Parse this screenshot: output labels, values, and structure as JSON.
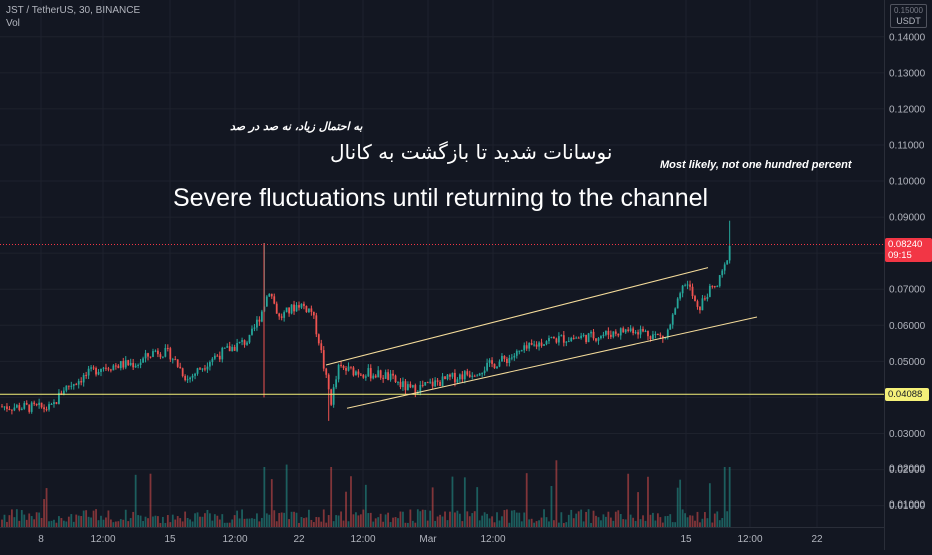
{
  "legend": {
    "symbol_line": "JST / TetherUS, 30, BINANCE",
    "vol_label": "Vol"
  },
  "annotations": {
    "fa_small": "به احتمال زیاد، نه صد در صد",
    "fa_big": "نوسانات شدید تا بازگشت به کانال",
    "en_small": "Most likely, not one hundred percent",
    "en_big": "Severe fluctuations until returning to the channel"
  },
  "price_scale": {
    "currency": "USDT",
    "top_label": "0.15000"
  },
  "last_price": {
    "value": "0.08240",
    "countdown": "09:15",
    "color": "#f23645"
  },
  "horizontal_line": {
    "value": "0.04088",
    "color": "#f5f179"
  },
  "colors": {
    "up": "#26a69a",
    "down": "#ef5350",
    "background": "#131722",
    "channel": "#f5dc9b"
  },
  "chart_data": {
    "type": "candlestick",
    "symbol": "JST / TetherUS",
    "interval": "30",
    "exchange": "BINANCE",
    "y_ticks": [
      "0.15000",
      "0.14000",
      "0.13000",
      "0.12000",
      "0.11000",
      "0.10000",
      "0.09000",
      "0.08000",
      "0.07000",
      "0.06000",
      "0.05000",
      "0.04000",
      "0.03000",
      "0.02000",
      "0.01000"
    ],
    "ylim": [
      0.0,
      0.151
    ],
    "x_ticks": [
      "8",
      "12:00",
      "15",
      "12:00",
      "22",
      "12:00",
      "Mar",
      "12:00",
      "15",
      "12:00",
      "22"
    ],
    "volume_y_ticks": [
      "0.02000",
      "0.01000"
    ],
    "key_points": [
      {
        "label": "start",
        "price": 0.0375
      },
      {
        "label": "spike high",
        "price": 0.0828
      },
      {
        "label": "crash low",
        "price": 0.0335
      },
      {
        "label": "last",
        "price": 0.0824
      },
      {
        "label": "latest high",
        "price": 0.089
      }
    ],
    "horizontal_line": 0.04088,
    "last_price": 0.0824,
    "channel": {
      "upper": [
        {
          "price": 0.049
        },
        {
          "price": 0.076
        }
      ],
      "lower": [
        {
          "price": 0.037
        },
        {
          "price": 0.0623
        }
      ]
    }
  }
}
